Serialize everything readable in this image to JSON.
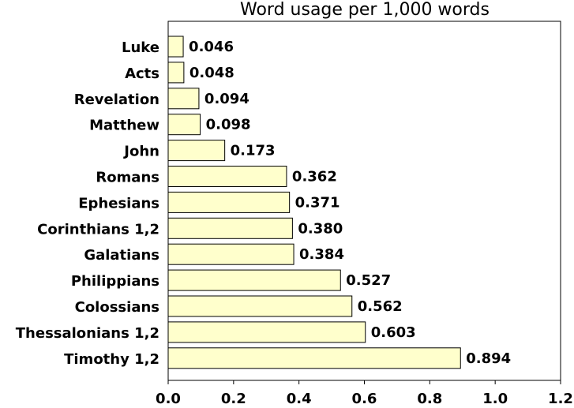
{
  "chart_data": {
    "type": "bar",
    "orientation": "horizontal",
    "title": "Word usage per 1,000 words",
    "xlabel": "",
    "ylabel": "",
    "categories": [
      "Luke",
      "Acts",
      "Revelation",
      "Matthew",
      "John",
      "Romans",
      "Ephesians",
      "Corinthians 1,2",
      "Galatians",
      "Philippians",
      "Colossians",
      "Thessalonians 1,2",
      "Timothy 1,2"
    ],
    "values": [
      0.046,
      0.048,
      0.094,
      0.098,
      0.173,
      0.362,
      0.371,
      0.38,
      0.384,
      0.527,
      0.562,
      0.603,
      0.894
    ],
    "value_labels": [
      "0.046",
      "0.048",
      "0.094",
      "0.098",
      "0.173",
      "0.362",
      "0.371",
      "0.380",
      "0.384",
      "0.527",
      "0.562",
      "0.603",
      "0.894"
    ],
    "xlim": [
      0,
      1.2
    ],
    "xticks": [
      "0.0",
      "0.2",
      "0.4",
      "0.6",
      "0.8",
      "1.0",
      "1.2"
    ],
    "grid": false,
    "bar_color": "#ffffcc",
    "bar_edge_color": "#000000"
  }
}
